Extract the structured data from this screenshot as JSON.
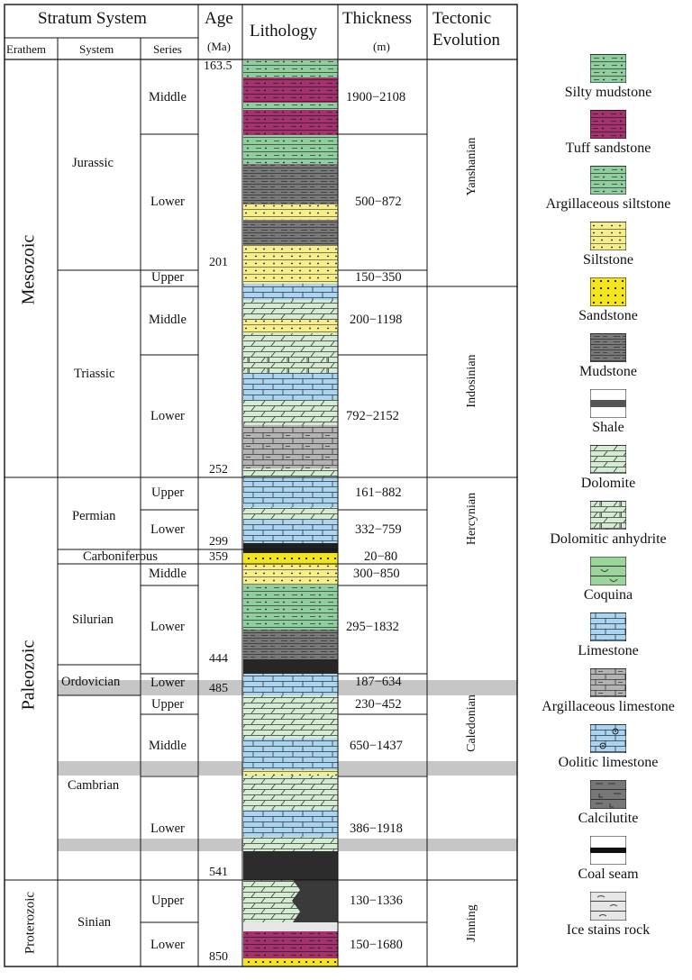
{
  "header": {
    "stratum_system": "Stratum System",
    "erathem": "Erathem",
    "system": "System",
    "series": "Series",
    "age": "Age",
    "age_unit": "(Ma)",
    "lithology": "Lithology",
    "thickness": "Thickness",
    "thickness_unit": "(m)",
    "tectonic": "Tectonic",
    "evolution": "Evolution"
  },
  "erathems": [
    "Mesozoic",
    "Paleozoic",
    "Proterozoic"
  ],
  "systems": [
    "Jurassic",
    "Triassic",
    "Permian",
    "Carboniferous",
    "Silurian",
    "Ordovician",
    "Cambrian",
    "Sinian"
  ],
  "series": {
    "jurassic": [
      "Middle",
      "Lower"
    ],
    "triassic": [
      "Upper",
      "Middle",
      "Lower"
    ],
    "permian": [
      "Upper",
      "Lower"
    ],
    "silurian": [
      "Middle",
      "Lower"
    ],
    "ordovician": [
      "Lower"
    ],
    "cambrian": [
      "Upper",
      "Middle",
      "Lower"
    ],
    "sinian": [
      "Upper",
      "Lower"
    ]
  },
  "ages": [
    "163.5",
    "201",
    "252",
    "299",
    "359",
    "444",
    "485",
    "541",
    "850"
  ],
  "thickness": [
    "1900−2108",
    "500−872",
    "150−350",
    "200−1198",
    "792−2152",
    "161−882",
    "332−759",
    "20−80",
    "300−850",
    "295−1832",
    "187−634",
    "230−452",
    "650−1437",
    "386−1918",
    "130−1336",
    "150−1680"
  ],
  "tectonic": [
    "Yanshanian",
    "Indosinian",
    "Hercynian",
    "Caledonian",
    "Jinning"
  ],
  "legend": [
    {
      "label": "Silty mudstone",
      "icon": "silty-mudstone-swatch",
      "color": "#8fcf9e"
    },
    {
      "label": "Tuff sandstone",
      "icon": "tuff-sandstone-swatch",
      "color": "#a5326e"
    },
    {
      "label": "Argillaceous siltstone",
      "icon": "argillaceous-siltstone-swatch",
      "color": "#8fcf9e"
    },
    {
      "label": "Siltstone",
      "icon": "siltstone-swatch",
      "color": "#f7ee8a"
    },
    {
      "label": "Sandstone",
      "icon": "sandstone-swatch",
      "color": "#f5e51b"
    },
    {
      "label": "Mudstone",
      "icon": "mudstone-swatch",
      "color": "#777777"
    },
    {
      "label": "Shale",
      "icon": "shale-swatch",
      "color": "#555555"
    },
    {
      "label": "Dolomite",
      "icon": "dolomite-swatch",
      "color": "#d4ecd2"
    },
    {
      "label": "Dolomitic anhydrite",
      "icon": "dolomitic-anhydrite-swatch",
      "color": "#d4ecd2"
    },
    {
      "label": "Coquina",
      "icon": "coquina-swatch",
      "color": "#9bd59b"
    },
    {
      "label": "Limestone",
      "icon": "limestone-swatch",
      "color": "#a9d4f2"
    },
    {
      "label": "Argillaceous limestone",
      "icon": "argillaceous-limestone-swatch",
      "color": "#b3b3b3"
    },
    {
      "label": "Oolitic limestone",
      "icon": "oolitic-limestone-swatch",
      "color": "#a9d4f2"
    },
    {
      "label": "Calcilutite",
      "icon": "calcilutite-swatch",
      "color": "#777777"
    },
    {
      "label": "Coal seam",
      "icon": "coal-seam-swatch",
      "color": "#111111"
    },
    {
      "label": "Ice stains rock",
      "icon": "ice-stains-rock-swatch",
      "color": "#e6e6e6"
    }
  ]
}
